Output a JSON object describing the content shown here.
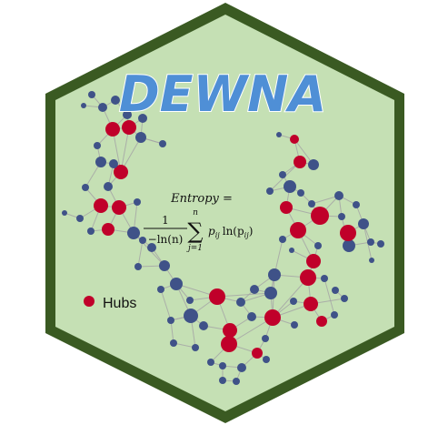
{
  "logo": {
    "title": "DEWNA",
    "colors": {
      "border": "#3a5a22",
      "fill": "#c5e0b4",
      "hub_node": "#c0002a",
      "node": "#3f5288",
      "edge": "#a6a6a6",
      "title_fill": "#4f8fd6",
      "title_stroke": "#ffffff"
    }
  },
  "formula": {
    "lhs": "Entropy =",
    "numerator": "1",
    "denominator": "−ln(n)",
    "sum_upper": "n",
    "sum_lower": "j=1",
    "summation_symbol": "∑",
    "body": "p",
    "body_sub": "ij",
    "body_log": "ln(p",
    "body_log_sub": "ij",
    "body_close": ")"
  },
  "legend": {
    "label": "Hubs",
    "icon": "red-dot-icon"
  }
}
